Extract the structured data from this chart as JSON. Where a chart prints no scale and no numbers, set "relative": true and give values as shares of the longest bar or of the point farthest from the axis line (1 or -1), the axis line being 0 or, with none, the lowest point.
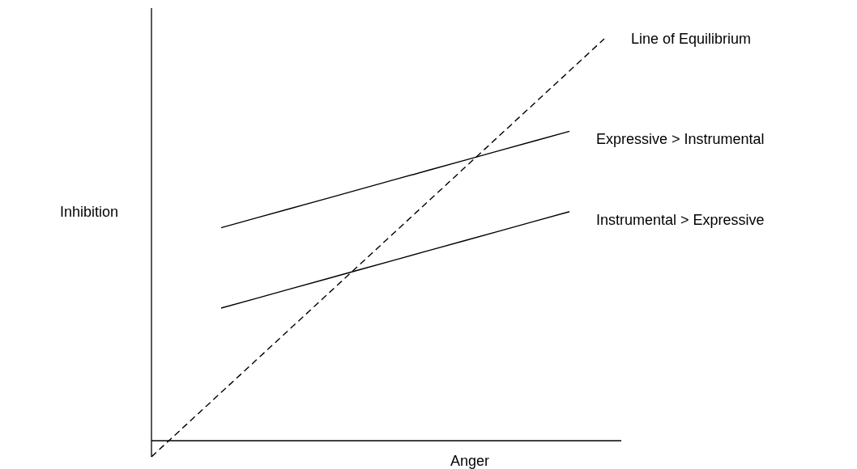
{
  "chart_data": {
    "type": "line",
    "relative": true,
    "xlabel": "Anger",
    "ylabel": "Inhibition",
    "legend": false,
    "categories": [
      null,
      null,
      null,
      null,
      null,
      null,
      null,
      null,
      null,
      null,
      null,
      null,
      null,
      null
    ],
    "series": [
      {
        "name": "Line of Equilibrium",
        "color": "#000000",
        "line_style": "dashed",
        "values": [
          -0.04,
          0.04,
          0.12,
          0.2,
          0.28,
          0.36,
          0.44,
          0.52,
          0.6,
          0.68,
          0.76,
          0.84,
          0.92,
          1.0
        ]
      },
      {
        "name": "Expressive > Instrumental",
        "color": "#000000",
        "line_style": "solid",
        "values": [
          null,
          null,
          0.53,
          0.554,
          0.578,
          0.602,
          0.626,
          0.65,
          0.674,
          0.698,
          0.722,
          0.746,
          0.77,
          null
        ]
      },
      {
        "name": "Instrumental > Expressive",
        "color": "#000000",
        "line_style": "solid",
        "values": [
          null,
          null,
          0.33,
          0.354,
          0.378,
          0.402,
          0.426,
          0.45,
          0.474,
          0.498,
          0.522,
          0.546,
          0.57,
          null
        ]
      }
    ]
  }
}
